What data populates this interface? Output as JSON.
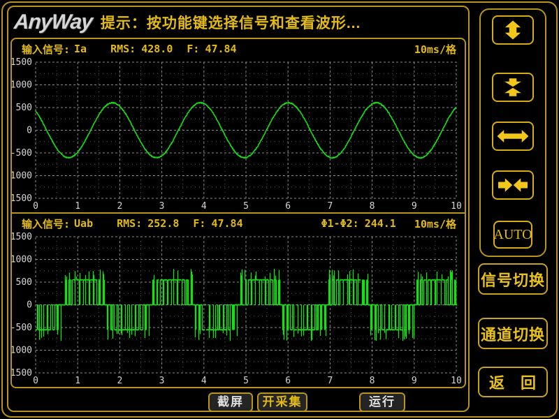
{
  "titlebar": {
    "logo": "AnyWay",
    "tip": "提示：按功能键选择信号和查看波形..."
  },
  "plots": [
    {
      "signal_label": "输入信号:",
      "signal": "Ia",
      "rms_label": "RMS:",
      "rms": "428.0",
      "freq_label": "F:",
      "freq": "47.84",
      "phase_label": "",
      "phase": "",
      "timebase": "10ms/格"
    },
    {
      "signal_label": "输入信号:",
      "signal": "Uab",
      "rms_label": "RMS:",
      "rms": "252.8",
      "freq_label": "F:",
      "freq": "47.84",
      "phase_label": "Φ1-Φ2:",
      "phase": "244.1",
      "timebase": "10ms/格"
    }
  ],
  "chart_data": [
    {
      "type": "line",
      "waveform": "sine",
      "signal": "Ia",
      "title": "输入信号: Ia",
      "x_unit_per_div": "10ms",
      "x_tick_labels": [
        "0",
        "1",
        "2",
        "3",
        "4",
        "5",
        "6",
        "7",
        "8",
        "9",
        "10"
      ],
      "ylim": [
        -1500,
        1500
      ],
      "y_tick_values": [
        1500,
        1000,
        500,
        0,
        -500,
        -1000,
        -1500
      ],
      "y_tick_labels": [
        "1500",
        "1000",
        "500",
        "0",
        "-500",
        "-1000",
        "-1500"
      ],
      "rms": 428.0,
      "frequency_hz": 47.84,
      "amplitude": 605,
      "period_div": 2.09,
      "phase_deg": 135,
      "noise_amp": 12,
      "color": "#15e015",
      "grid": "dotted"
    },
    {
      "type": "line",
      "waveform": "pwm_line_voltage",
      "signal": "Uab",
      "title": "输入信号: Uab",
      "x_unit_per_div": "10ms",
      "x_tick_labels": [
        "0",
        "1",
        "2",
        "3",
        "4",
        "5",
        "6",
        "7",
        "8",
        "9",
        "10"
      ],
      "ylim": [
        -1500,
        1500
      ],
      "y_tick_values": [
        1500,
        1000,
        500,
        0,
        -500,
        -1000,
        -1500
      ],
      "y_tick_labels": [
        "1500",
        "1000",
        "500",
        "0",
        "-500",
        "-1000",
        "-1500"
      ],
      "rms": 252.8,
      "frequency_hz": 47.84,
      "phase_diff_deg": 244.1,
      "vdc": 550,
      "mod_index": 1.08,
      "carrier_per_cycle": 22,
      "period_div": 2.09,
      "phase_deg": -139.1,
      "overshoot_min_factor": 1.12,
      "overshoot_rand_factor": 0.33,
      "noise_amp": 8,
      "color": "#15e015",
      "grid": "dotted"
    }
  ],
  "sidebar": {
    "auto_label": "AUTO",
    "signal_switch_label": "信号切换",
    "channel_switch_label": "通道切换",
    "return_label_left": "返",
    "return_label_right": "回"
  },
  "bottombar": {
    "buttons": [
      {
        "label": "截屏"
      },
      {
        "label": "开采集"
      },
      {
        "label": "运行"
      }
    ]
  },
  "colors": {
    "border_gold": "#b7951c",
    "accent_text": "#e3bb14",
    "icon_gold": "#f3c71a",
    "trace_green": "#15e015",
    "axis_text": "#d6d6d6",
    "grid_major": "#8a8a8a",
    "grid_minor": "#585858"
  }
}
